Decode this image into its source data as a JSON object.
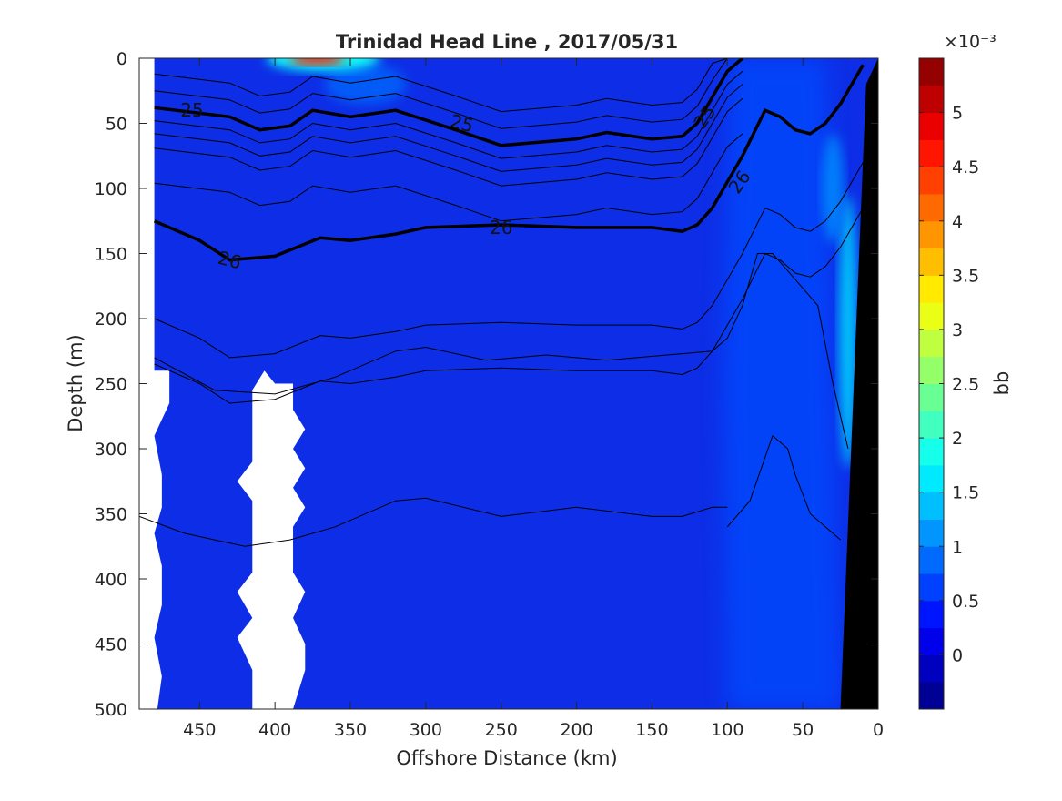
{
  "chart_data": {
    "type": "heatmap",
    "title": "Trinidad Head Line , 2017/05/31",
    "xlabel": "Offshore Distance (km)",
    "ylabel": "Depth (m)",
    "xlim": [
      490,
      0
    ],
    "ylim": [
      500,
      0
    ],
    "x_reversed": true,
    "y_reversed": true,
    "x_ticks": [
      450,
      400,
      350,
      300,
      250,
      200,
      150,
      100,
      50,
      0
    ],
    "y_ticks": [
      0,
      50,
      100,
      150,
      200,
      250,
      300,
      350,
      400,
      450,
      500
    ],
    "colorbar": {
      "label": "bb",
      "exponent": "×10⁻³",
      "range": [
        -0.5,
        5.5
      ],
      "ticks": [
        0,
        0.5,
        1,
        1.5,
        2,
        2.5,
        3,
        3.5,
        4,
        4.5,
        5
      ],
      "tick_labels": [
        "0",
        "0.5",
        "1",
        "1.5",
        "2",
        "2.5",
        "3",
        "3.5",
        "4",
        "4.5",
        "5"
      ],
      "colormap": "jet"
    },
    "background_field_value": 0.3,
    "features": [
      {
        "name": "surface patch",
        "x_center": 370,
        "depth_center": 0,
        "value": 4.5
      },
      {
        "name": "nearshore band",
        "x_range": [
          100,
          20
        ],
        "depth_range": [
          0,
          500
        ],
        "value": 0.8
      },
      {
        "name": "nearshore max",
        "x_center": 20,
        "depth_center": 200,
        "value": 1.6
      }
    ],
    "density_contours": {
      "thin_levels": [
        24.6,
        24.8,
        25.2,
        25.4,
        25.6,
        25.8,
        26.2,
        26.4
      ],
      "bold_levels": [
        25,
        26
      ],
      "bold_labels": [
        "25",
        "25",
        "25",
        "26",
        "26",
        "26"
      ],
      "bold_25": {
        "x": [
          480,
          430,
          410,
          390,
          375,
          350,
          320,
          280,
          250,
          200,
          180,
          150,
          130,
          120,
          110,
          100,
          90
        ],
        "depth": [
          38,
          45,
          55,
          52,
          40,
          45,
          40,
          55,
          67,
          62,
          57,
          62,
          60,
          50,
          30,
          10,
          0
        ]
      },
      "bold_26": {
        "x": [
          480,
          450,
          430,
          400,
          370,
          350,
          320,
          300,
          250,
          200,
          150,
          130,
          120,
          110,
          100,
          90,
          75,
          65,
          55,
          45,
          35,
          25,
          15,
          10
        ],
        "depth": [
          125,
          140,
          155,
          152,
          138,
          140,
          135,
          130,
          128,
          130,
          130,
          133,
          128,
          115,
          95,
          75,
          40,
          45,
          55,
          58,
          50,
          35,
          15,
          5
        ]
      }
    },
    "missing_data_regions": [
      {
        "x_range": [
          490,
          475
        ],
        "depth_range": [
          0,
          500
        ]
      },
      {
        "x_range": [
          415,
          385
        ],
        "depth_range": [
          240,
          500
        ]
      }
    ],
    "bathymetry_color": "#000000"
  }
}
